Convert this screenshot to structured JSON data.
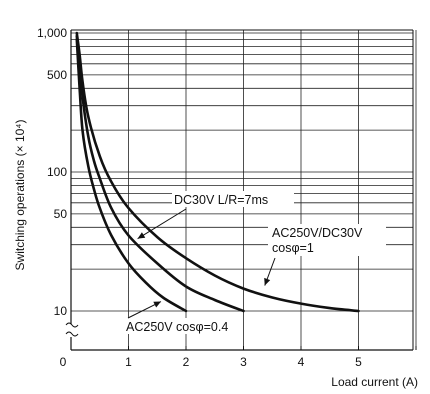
{
  "chart_data": {
    "type": "line",
    "ylabel": "Switching operations (× 10⁴)",
    "xlabel": "Load current (A)",
    "xlim": [
      0,
      6
    ],
    "ylim": [
      10,
      1000
    ],
    "yscale": "log",
    "grid": true,
    "x_ticks": [
      "0",
      "1",
      "2",
      "3",
      "4",
      "5"
    ],
    "y_ticks": [
      {
        "value": 1000,
        "label": "1,000"
      },
      {
        "value": 500,
        "label": "500"
      },
      {
        "value": 100,
        "label": "100"
      },
      {
        "value": 50,
        "label": "50"
      },
      {
        "value": 10,
        "label": "10"
      }
    ],
    "series": [
      {
        "name": "AC250V cosφ=0.4",
        "x": [
          0.1,
          0.15,
          0.2,
          0.3,
          0.4,
          0.5,
          0.7,
          1.0,
          1.3,
          1.6,
          2.0
        ],
        "y": [
          900,
          400,
          200,
          110,
          75,
          55,
          35,
          22,
          16,
          12.5,
          10
        ]
      },
      {
        "name": "DC30V L/R=7ms",
        "x": [
          0.1,
          0.15,
          0.2,
          0.3,
          0.4,
          0.5,
          0.7,
          1.0,
          1.5,
          2.0,
          2.5,
          3.0
        ],
        "y": [
          950,
          600,
          350,
          180,
          120,
          90,
          55,
          35,
          22,
          15,
          12,
          10
        ]
      },
      {
        "name": "AC250V/DC30V cosφ=1",
        "x": [
          0.1,
          0.15,
          0.2,
          0.3,
          0.5,
          0.7,
          1.0,
          1.5,
          2.0,
          2.5,
          3.0,
          3.5,
          4.0,
          4.5,
          5.0
        ],
        "y": [
          1000,
          700,
          450,
          250,
          130,
          85,
          55,
          34,
          24,
          18,
          14.5,
          12.5,
          11.3,
          10.5,
          10
        ]
      }
    ],
    "annotations": [
      {
        "text": "DC30V L/R=7ms",
        "points_to": [
          0.95,
          30
        ]
      },
      {
        "text": "AC250V/DC30V",
        "text2": "cosφ=1",
        "points_to": [
          3.3,
          15
        ]
      },
      {
        "text": "AC250V  cosφ=0.4",
        "points_to": [
          1.6,
          12.5
        ]
      }
    ],
    "axis_break_symbol": "≀"
  }
}
